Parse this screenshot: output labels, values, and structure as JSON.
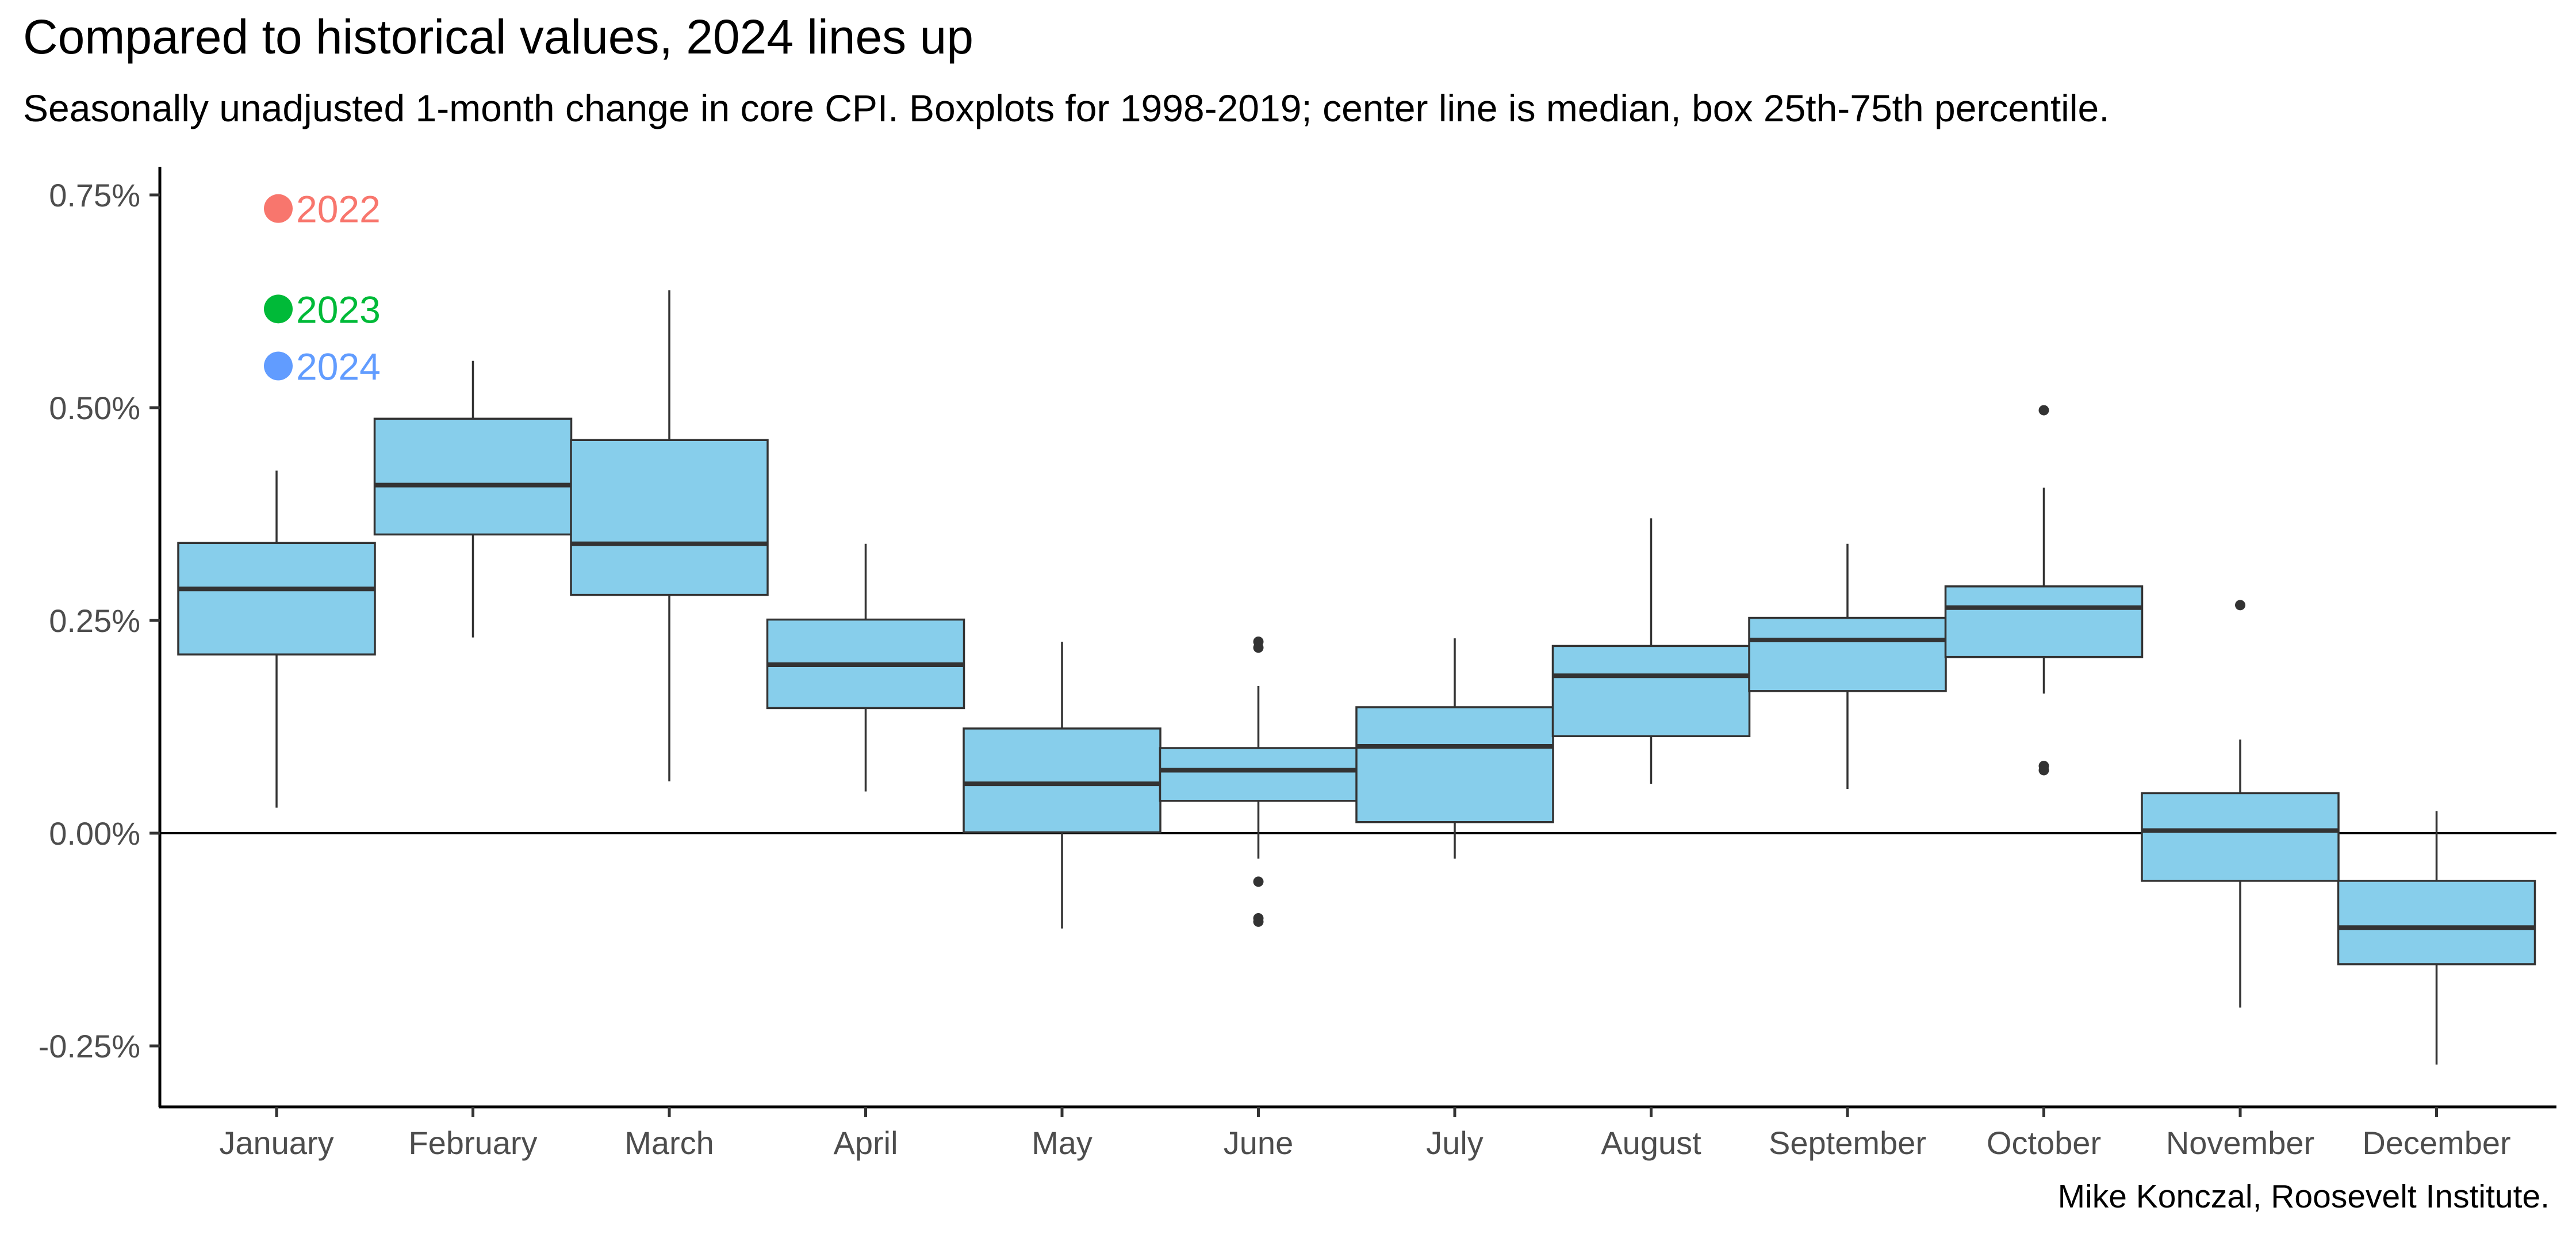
{
  "chart_data": {
    "type": "boxplot",
    "title": "Compared to historical values, 2024 lines up",
    "subtitle": "Seasonally unadjusted 1-month change in core CPI. Boxplots for 1998-2019; center line is median, box 25th-75th percentile.",
    "caption": "Mike Konczal, Roosevelt Institute.",
    "xlabel": "",
    "ylabel": "",
    "ylim": [
      -0.32,
      0.78
    ],
    "yticks": [
      -0.25,
      0.0,
      0.25,
      0.5,
      0.75
    ],
    "ytick_labels": [
      "-0.25%",
      "0.00%",
      "0.25%",
      "0.50%",
      "0.75%"
    ],
    "reference_line": 0.0,
    "grid": false,
    "box_color": "#87ceeb",
    "categories": [
      "January",
      "February",
      "March",
      "April",
      "May",
      "June",
      "July",
      "August",
      "September",
      "October",
      "November",
      "December"
    ],
    "boxes": [
      {
        "month": "January",
        "whisker_low": 0.03,
        "q1": 0.21,
        "median": 0.287,
        "q3": 0.341,
        "whisker_high": 0.426,
        "outliers": []
      },
      {
        "month": "February",
        "whisker_low": 0.23,
        "q1": 0.351,
        "median": 0.409,
        "q3": 0.487,
        "whisker_high": 0.555,
        "outliers": []
      },
      {
        "month": "March",
        "whisker_low": 0.061,
        "q1": 0.28,
        "median": 0.34,
        "q3": 0.462,
        "whisker_high": 0.638,
        "outliers": []
      },
      {
        "month": "April",
        "whisker_low": 0.049,
        "q1": 0.147,
        "median": 0.198,
        "q3": 0.251,
        "whisker_high": 0.34,
        "outliers": []
      },
      {
        "month": "May",
        "whisker_low": -0.112,
        "q1": 0.001,
        "median": 0.058,
        "q3": 0.123,
        "whisker_high": 0.225,
        "outliers": []
      },
      {
        "month": "June",
        "whisker_low": -0.03,
        "q1": 0.038,
        "median": 0.074,
        "q3": 0.1,
        "whisker_high": 0.173,
        "outliers": [
          0.225,
          0.218,
          -0.057,
          -0.1,
          -0.104
        ]
      },
      {
        "month": "July",
        "whisker_low": -0.03,
        "q1": 0.013,
        "median": 0.102,
        "q3": 0.148,
        "whisker_high": 0.229,
        "outliers": []
      },
      {
        "month": "August",
        "whisker_low": 0.058,
        "q1": 0.114,
        "median": 0.185,
        "q3": 0.22,
        "whisker_high": 0.37,
        "outliers": []
      },
      {
        "month": "September",
        "whisker_low": 0.052,
        "q1": 0.167,
        "median": 0.227,
        "q3": 0.253,
        "whisker_high": 0.34,
        "outliers": []
      },
      {
        "month": "October",
        "whisker_low": 0.164,
        "q1": 0.207,
        "median": 0.265,
        "q3": 0.29,
        "whisker_high": 0.406,
        "outliers": [
          0.497,
          0.079,
          0.074
        ]
      },
      {
        "month": "November",
        "whisker_low": -0.205,
        "q1": -0.056,
        "median": 0.003,
        "q3": 0.047,
        "whisker_high": 0.11,
        "outliers": [
          0.268
        ]
      },
      {
        "month": "December",
        "whisker_low": -0.272,
        "q1": -0.154,
        "median": -0.111,
        "q3": -0.056,
        "whisker_high": 0.026,
        "outliers": []
      }
    ],
    "highlight_points": [
      {
        "label": "2022",
        "month": "January",
        "value": 0.734,
        "color": "#f8766d"
      },
      {
        "label": "2023",
        "month": "January",
        "value": 0.616,
        "color": "#00ba38"
      },
      {
        "label": "2024",
        "month": "January",
        "value": 0.549,
        "color": "#619cff"
      }
    ]
  }
}
